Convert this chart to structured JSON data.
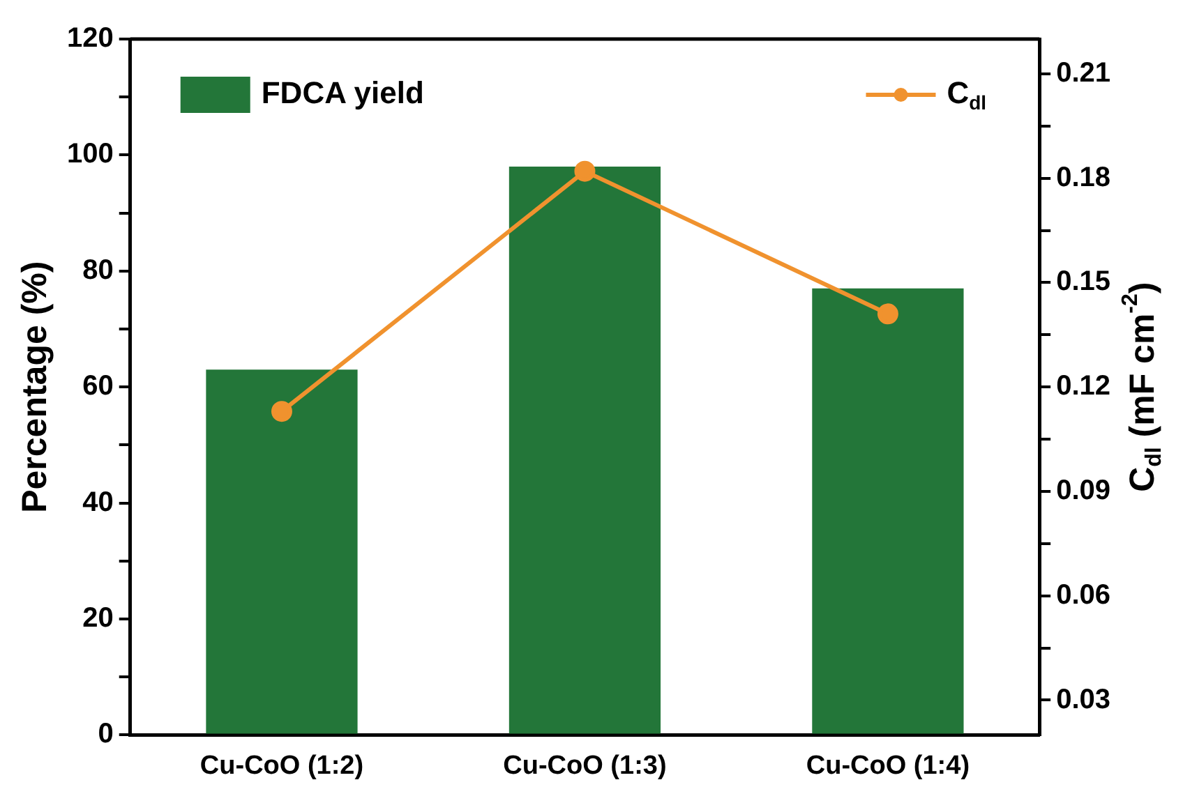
{
  "chart_data": {
    "type": "bar",
    "categories": [
      "Cu-CoO (1:2)",
      "Cu-CoO (1:3)",
      "Cu-CoO (1:4)"
    ],
    "ylabel": "Percentage (%)",
    "y2label": "C$_{dl}$ (mF cm$^{-2}$)",
    "series": [
      {
        "name": "FDCA yield",
        "color": "#237639",
        "values": [
          63,
          98,
          77
        ]
      },
      {
        "name": "C$_{dl}$",
        "type": "line",
        "axis": "y2",
        "color": "#f0922e",
        "marker": "circle",
        "values": [
          0.113,
          0.182,
          0.141
        ]
      }
    ],
    "ylim": [
      0,
      120
    ],
    "yticks": [
      0,
      {
        "value": 10,
        "label": null
      },
      20,
      {
        "value": 30,
        "label": null
      },
      40,
      {
        "value": 50,
        "label": null
      },
      60,
      {
        "value": 70,
        "label": null
      },
      80,
      {
        "value": 90,
        "label": null
      },
      100,
      {
        "value": 110,
        "label": null
      },
      120
    ],
    "y2lim": [
      0.02,
      0.22
    ],
    "y2ticks": [
      0.03,
      {
        "value": 0.045,
        "label": null
      },
      0.06,
      {
        "value": 0.075,
        "label": null
      },
      0.09,
      {
        "value": 0.105,
        "label": null
      },
      0.12,
      {
        "value": 0.135,
        "label": null
      },
      0.15,
      {
        "value": 0.165,
        "label": null
      },
      0.18,
      {
        "value": 0.195,
        "label": null
      },
      0.21
    ],
    "legend": "top",
    "grid": false
  }
}
